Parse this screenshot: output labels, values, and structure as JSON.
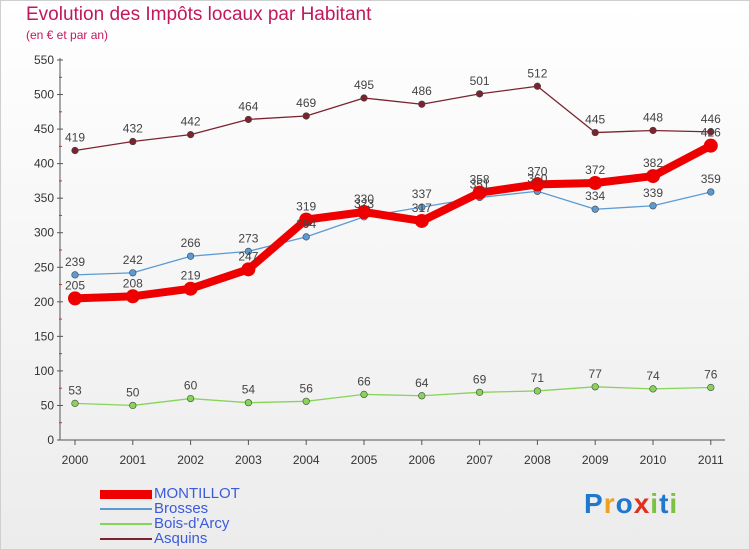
{
  "title": "Evolution des Impôts locaux par Habitant",
  "subtitle": "(en € et par an)",
  "logo": {
    "letters": [
      "P",
      "r",
      "o",
      "x",
      "i",
      "t",
      "i"
    ],
    "colors": [
      "#1f77d0",
      "#f0a020",
      "#1f77d0",
      "#e0301e",
      "#7cc242",
      "#1f77d0",
      "#7cc242"
    ]
  },
  "chart_data": {
    "type": "line",
    "title": "Evolution des Impôts locaux par Habitant",
    "subtitle": "(en € et par an)",
    "xlabel": "",
    "ylabel": "",
    "ylim": [
      0,
      550
    ],
    "yticks": [
      0,
      50,
      100,
      150,
      200,
      250,
      300,
      350,
      400,
      450,
      500,
      550
    ],
    "grid": false,
    "legend": "bottom-left",
    "categories": [
      "2000",
      "2001",
      "2002",
      "2003",
      "2004",
      "2005",
      "2006",
      "2007",
      "2008",
      "2009",
      "2010",
      "2011"
    ],
    "series": [
      {
        "name": "Asquins",
        "color": "#7b2430",
        "values": [
          419,
          432,
          442,
          464,
          469,
          495,
          486,
          501,
          512,
          445,
          448,
          446
        ]
      },
      {
        "name": "Bois-d'Arcy",
        "color": "#88d45a",
        "values": [
          53,
          50,
          60,
          54,
          56,
          66,
          64,
          69,
          71,
          77,
          74,
          76
        ]
      },
      {
        "name": "Brosses",
        "color": "#5b9bd5",
        "values": [
          239,
          242,
          266,
          273,
          294,
          323,
          337,
          351,
          360,
          334,
          339,
          359
        ]
      },
      {
        "name": "MONTILLOT",
        "color": "#ee0000",
        "values": [
          205,
          208,
          219,
          247,
          319,
          330,
          317,
          358,
          370,
          372,
          382,
          426
        ]
      }
    ]
  },
  "legend_items": [
    {
      "name": "MONTILLOT",
      "color": "#ee0000"
    },
    {
      "name": "Brosses",
      "color": "#5b9bd5"
    },
    {
      "name": "Bois-d'Arcy",
      "color": "#88d45a"
    },
    {
      "name": "Asquins",
      "color": "#7b2430"
    }
  ]
}
